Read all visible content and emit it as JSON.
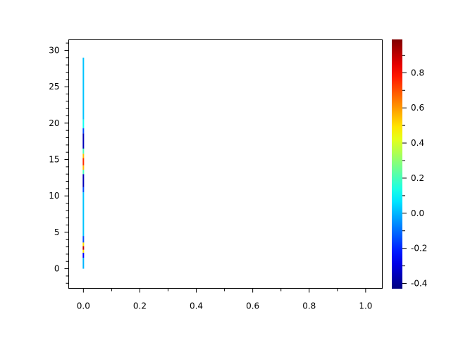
{
  "chart_data": {
    "type": "heatmap",
    "title": "",
    "xlabel": "",
    "ylabel": "",
    "xlim": [
      -0.052,
      1.059
    ],
    "ylim": [
      -2.7,
      31.45
    ],
    "xticks": [
      0.0,
      0.2,
      0.4,
      0.6,
      0.8,
      1.0
    ],
    "xtick_labels": [
      "0.0",
      "0.2",
      "0.4",
      "0.6",
      "0.8",
      "1.0"
    ],
    "yticks": [
      0,
      5,
      10,
      15,
      20,
      25,
      30
    ],
    "ytick_labels": [
      "0",
      "5",
      "10",
      "15",
      "20",
      "25",
      "30"
    ],
    "grid": false,
    "colormap": "jet",
    "colorbar": {
      "position": "right",
      "range": [
        -0.43,
        0.99
      ],
      "ticks": [
        -0.4,
        -0.2,
        0.0,
        0.2,
        0.4,
        0.6,
        0.8
      ],
      "tick_labels": [
        "-0.4",
        "-0.2",
        "0.0",
        "0.2",
        "0.4",
        "0.6",
        "0.8"
      ]
    },
    "series": [
      {
        "x": 0.0,
        "segments": [
          {
            "y0": 0.0,
            "y1": 1.5,
            "value": 0.0
          },
          {
            "y0": 1.5,
            "y1": 2.2,
            "value": -0.25
          },
          {
            "y0": 2.2,
            "y1": 2.6,
            "value": 0.5
          },
          {
            "y0": 2.6,
            "y1": 3.1,
            "value": 0.9
          },
          {
            "y0": 3.1,
            "y1": 3.6,
            "value": 0.5
          },
          {
            "y0": 3.6,
            "y1": 4.5,
            "value": -0.15
          },
          {
            "y0": 4.5,
            "y1": 10.5,
            "value": 0.02
          },
          {
            "y0": 10.5,
            "y1": 11.2,
            "value": -0.15
          },
          {
            "y0": 11.2,
            "y1": 13.0,
            "value": -0.35
          },
          {
            "y0": 13.0,
            "y1": 13.6,
            "value": 0.2
          },
          {
            "y0": 13.6,
            "y1": 14.2,
            "value": 0.55
          },
          {
            "y0": 14.2,
            "y1": 15.2,
            "value": 0.75
          },
          {
            "y0": 15.2,
            "y1": 15.8,
            "value": 0.55
          },
          {
            "y0": 15.8,
            "y1": 16.5,
            "value": 0.2
          },
          {
            "y0": 16.5,
            "y1": 18.6,
            "value": -0.35
          },
          {
            "y0": 18.6,
            "y1": 19.3,
            "value": -0.15
          },
          {
            "y0": 19.3,
            "y1": 20.5,
            "value": 0.12
          },
          {
            "y0": 20.5,
            "y1": 29.0,
            "value": 0.02
          }
        ]
      }
    ]
  }
}
